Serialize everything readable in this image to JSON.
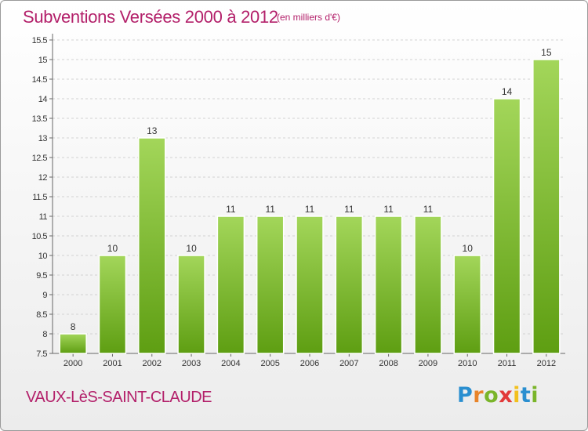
{
  "title": "Subventions Versées 2000 à 2012",
  "subtitle": "(en milliers d'€)",
  "commune": "VAUX-LèS-SAINT-CLAUDE",
  "brand": {
    "letters": [
      "P",
      "r",
      "o",
      "x",
      "i",
      "t",
      "i"
    ],
    "colors": [
      "#2a8fd0",
      "#e8842a",
      "#7ab52a",
      "#e23a3a",
      "#f2c01e",
      "#2a8fd0",
      "#7ab52a"
    ]
  },
  "colors": {
    "title": "#b3206a",
    "bar_light": "#a3d65a",
    "bar_dark": "#5e9e12",
    "grid": "#d2d2d2",
    "axis": "#666666"
  },
  "chart_data": {
    "type": "bar",
    "categories": [
      "2000",
      "2001",
      "2002",
      "2003",
      "2004",
      "2005",
      "2006",
      "2007",
      "2008",
      "2009",
      "2010",
      "2011",
      "2012"
    ],
    "values": [
      8,
      10,
      13,
      10,
      11,
      11,
      11,
      11,
      11,
      11,
      10,
      14,
      15
    ],
    "data_labels": [
      "8",
      "10",
      "13",
      "10",
      "11",
      "11",
      "11",
      "11",
      "11",
      "11",
      "10",
      "14",
      "15"
    ],
    "yticks": [
      "7.5",
      "8",
      "8.5",
      "9",
      "9.5",
      "10",
      "10.5",
      "11",
      "11.5",
      "12",
      "12.5",
      "13",
      "13.5",
      "14",
      "14.5",
      "15",
      "15.5"
    ],
    "ylim": [
      7.5,
      15.5
    ],
    "grid": true,
    "legend": "none"
  }
}
